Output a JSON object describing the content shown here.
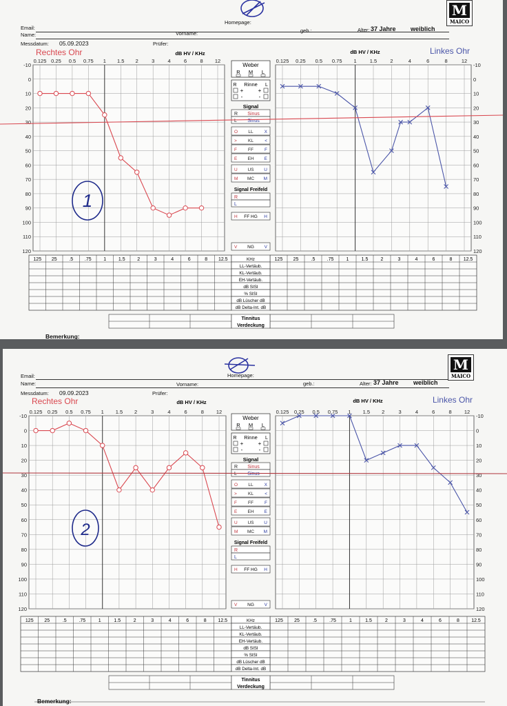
{
  "header_labels": {
    "email": "Email:",
    "homepage": "Homepage:",
    "name": "Name:",
    "vorname": "Vorname:",
    "geb": "geb.:",
    "alter": "Alter:",
    "messdatum": "Messdatum:",
    "pruefer": "Prüfer:",
    "bemerkung": "Bemerkung:",
    "logo": "MAICO",
    "axis_title": "dB HV / KHz",
    "right_ear": "Rechtes Ohr",
    "left_ear": "Linkes Ohr"
  },
  "middle_panel": {
    "weber": "Weber",
    "weber_rml": [
      "R",
      "M",
      "L"
    ],
    "rinne": "Rinne",
    "rinne_rows": [
      [
        "R",
        "L"
      ],
      [
        "+",
        "+"
      ],
      [
        "-",
        "-"
      ]
    ],
    "signal": "Signal",
    "signal_rows": [
      [
        "R",
        "Sinus"
      ],
      [
        "L",
        "Sinus"
      ]
    ],
    "legend_rows": [
      [
        "O",
        "LL",
        "X"
      ],
      [
        ">",
        "KL",
        "<"
      ],
      [
        "F",
        "FF",
        "F"
      ],
      [
        "E",
        "EH",
        "E"
      ],
      [
        "U",
        "US",
        "U"
      ],
      [
        "M",
        "MC",
        "M"
      ]
    ],
    "freifeld": "Signal Freifeld",
    "freifeld_rows": [
      "R",
      "L"
    ],
    "ffhg": [
      "H",
      "FF HG",
      "H"
    ],
    "ng": [
      "V",
      "NG",
      "V"
    ]
  },
  "bottom_table": {
    "freqs": [
      "125",
      "25",
      ".5",
      ".75",
      "1",
      "1.5",
      "2",
      "3",
      "4",
      "6",
      "8",
      "12.5"
    ],
    "freqs_left": [
      "125",
      "25",
      ".5",
      ".75",
      "1",
      "1.5",
      "2",
      "3",
      "4",
      "6",
      "8",
      "12.5"
    ],
    "rows": [
      "KHz",
      "LL-Vertäub.",
      "KL-Vertäub.",
      "EH-Vertäub.",
      "dB SISI",
      "% SISI",
      "dB Lüscher dB",
      "dB Delta-Int. dB"
    ],
    "tinnitus": "Tinnitus",
    "verdeckung": "Verdeckung"
  },
  "sheets": [
    {
      "messdatum": "05.09.2023",
      "alter_value": "37 Jahre",
      "geschlecht": "weiblich",
      "handwritten_number": "1"
    },
    {
      "messdatum": "09.09.2023",
      "alter_value": "37 Jahre",
      "geschlecht": "weiblich",
      "handwritten_number": "2"
    }
  ],
  "chart_data": [
    {
      "type": "line",
      "title": "Rechtes Ohr",
      "ylabel": "dB HV / KHz",
      "x_ticks": [
        "0.125",
        "0.25",
        "0.5",
        "0.75",
        "1",
        "1.5",
        "2",
        "3",
        "4",
        "6",
        "8",
        "12"
      ],
      "x_tick_values": [
        0.125,
        0.25,
        0.5,
        0.75,
        1,
        1.5,
        2,
        3,
        4,
        6,
        8,
        12
      ],
      "y_ticks": [
        -10,
        0,
        10,
        20,
        30,
        40,
        50,
        60,
        70,
        80,
        90,
        100,
        110,
        120
      ],
      "ylim": [
        -10,
        120
      ],
      "y_inverted": true,
      "reference_line_db": 30,
      "series": [
        {
          "color": "#d9474f",
          "marker": "O",
          "x": [
            0.125,
            0.25,
            0.5,
            0.75,
            1,
            1.5,
            2,
            3,
            4,
            6,
            8
          ],
          "y": [
            10,
            10,
            10,
            10,
            25,
            55,
            65,
            90,
            95,
            90,
            90
          ]
        }
      ]
    },
    {
      "type": "line",
      "title": "Linkes Ohr",
      "ylabel": "dB HV / KHz",
      "x_ticks": [
        "0.125",
        "0.25",
        "0.5",
        "0.75",
        "1",
        "1.5",
        "2",
        "4",
        "6",
        "8",
        "12"
      ],
      "x_tick_values": [
        0.125,
        0.25,
        0.5,
        0.75,
        1,
        1.5,
        2,
        4,
        6,
        8,
        12
      ],
      "y_ticks": [
        -10,
        0,
        10,
        20,
        30,
        40,
        50,
        60,
        70,
        80,
        90,
        100,
        110,
        120
      ],
      "ylim": [
        -10,
        120
      ],
      "y_inverted": true,
      "reference_line_db": 30,
      "series": [
        {
          "color": "#4a55a8",
          "marker": "X",
          "x": [
            0.125,
            0.25,
            0.5,
            0.75,
            1,
            1.5,
            2,
            3,
            4,
            6,
            8
          ],
          "y": [
            5,
            5,
            5,
            10,
            20,
            65,
            50,
            30,
            30,
            20,
            75
          ]
        }
      ]
    },
    {
      "type": "line",
      "title": "Rechtes Ohr",
      "ylabel": "dB HV / KHz",
      "x_ticks": [
        "0.125",
        "0.25",
        "0.5",
        "0.75",
        "1",
        "1.5",
        "2",
        "3",
        "4",
        "6",
        "8",
        "12"
      ],
      "x_tick_values": [
        0.125,
        0.25,
        0.5,
        0.75,
        1,
        1.5,
        2,
        3,
        4,
        6,
        8,
        12
      ],
      "y_ticks": [
        -10,
        0,
        10,
        20,
        30,
        40,
        50,
        60,
        70,
        80,
        90,
        100,
        110,
        120
      ],
      "ylim": [
        -10,
        120
      ],
      "y_inverted": true,
      "reference_line_db": 30,
      "series": [
        {
          "color": "#d9474f",
          "marker": "O",
          "x": [
            0.125,
            0.25,
            0.5,
            0.75,
            1,
            1.5,
            2,
            3,
            4,
            6,
            8,
            12
          ],
          "y": [
            0,
            0,
            -5,
            0,
            10,
            40,
            25,
            40,
            25,
            15,
            25,
            65
          ]
        }
      ]
    },
    {
      "type": "line",
      "title": "Linkes Ohr",
      "ylabel": "dB HV / KHz",
      "x_ticks": [
        "0.125",
        "0.25",
        "0.5",
        "0.75",
        "1",
        "1.5",
        "2",
        "3",
        "4",
        "6",
        "8",
        "12"
      ],
      "x_tick_values": [
        0.125,
        0.25,
        0.5,
        0.75,
        1,
        1.5,
        2,
        3,
        4,
        6,
        8,
        12
      ],
      "y_ticks": [
        -10,
        0,
        10,
        20,
        30,
        40,
        50,
        60,
        70,
        80,
        90,
        100,
        110,
        120
      ],
      "ylim": [
        -10,
        120
      ],
      "y_inverted": true,
      "reference_line_db": 30,
      "series": [
        {
          "color": "#4a55a8",
          "marker": "X",
          "x": [
            0.125,
            0.25,
            0.5,
            0.75,
            1,
            1.5,
            2,
            3,
            4,
            6,
            8,
            12
          ],
          "y": [
            -5,
            -10,
            -10,
            -10,
            -10,
            20,
            15,
            10,
            10,
            25,
            35,
            55
          ]
        }
      ]
    }
  ]
}
